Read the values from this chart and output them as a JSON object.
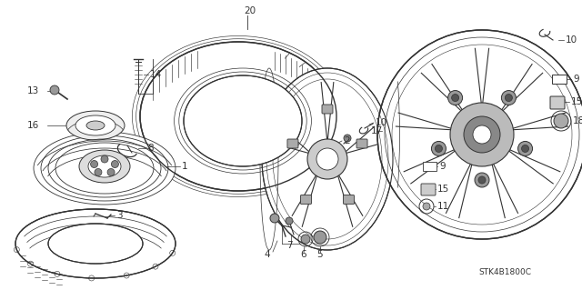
{
  "bg_color": "#ffffff",
  "part_number": "STK4B1800C",
  "color": "#333333"
}
